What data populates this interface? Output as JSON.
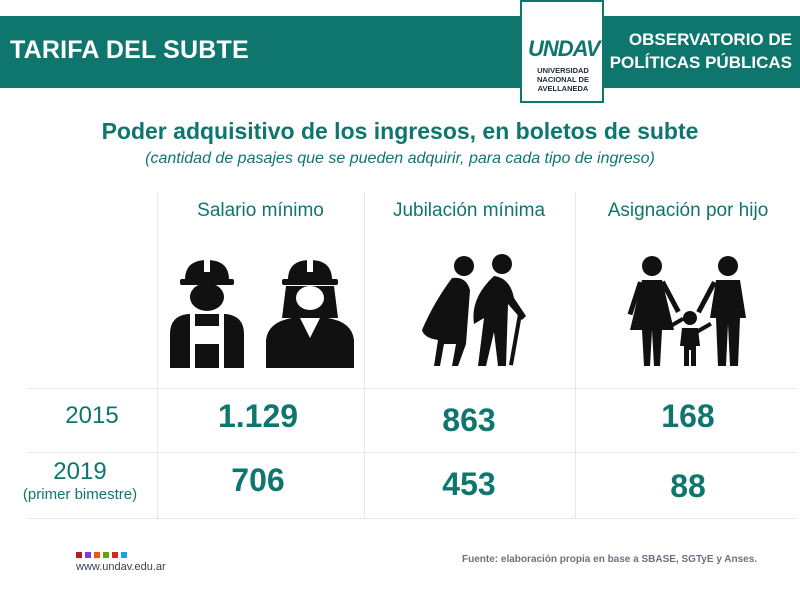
{
  "header": {
    "title": "TARIFA DEL SUBTE",
    "org": [
      "OBSERVATORIO DE",
      "POLÍTICAS PÚBLICAS"
    ],
    "logo_mark": "UNDAV",
    "logo_text": [
      "UNIVERSIDAD",
      "NACIONAL DE",
      "AVELLANEDA"
    ]
  },
  "heading": "Poder adquisitivo de los ingresos, en boletos de subte",
  "subheading": "(cantidad de pasajes que se pueden adquirir, para cada tipo de ingreso)",
  "columns": [
    "Salario mínimo",
    "Jubilación mínima",
    "Asignación por hijo"
  ],
  "icons": [
    "male-worker-icon",
    "female-worker-icon",
    "elderly-couple-icon",
    "family-icon"
  ],
  "rows": [
    {
      "year": "2015",
      "note": "",
      "values": [
        "1.129",
        "863",
        "168"
      ]
    },
    {
      "year": "2019",
      "note": "(primer bimestre)",
      "values": [
        "706",
        "453",
        "88"
      ]
    }
  ],
  "footer": {
    "url": "www.undav.edu.ar",
    "source": "Fuente: elaboración propia en base a SBASE, SGTyE y Anses."
  },
  "colors": {
    "primary": "#0f766e",
    "dots": [
      "#b91c1c",
      "#7c3aed",
      "#ea580c",
      "#65a30d",
      "#dc2626",
      "#0ea5e9"
    ]
  }
}
